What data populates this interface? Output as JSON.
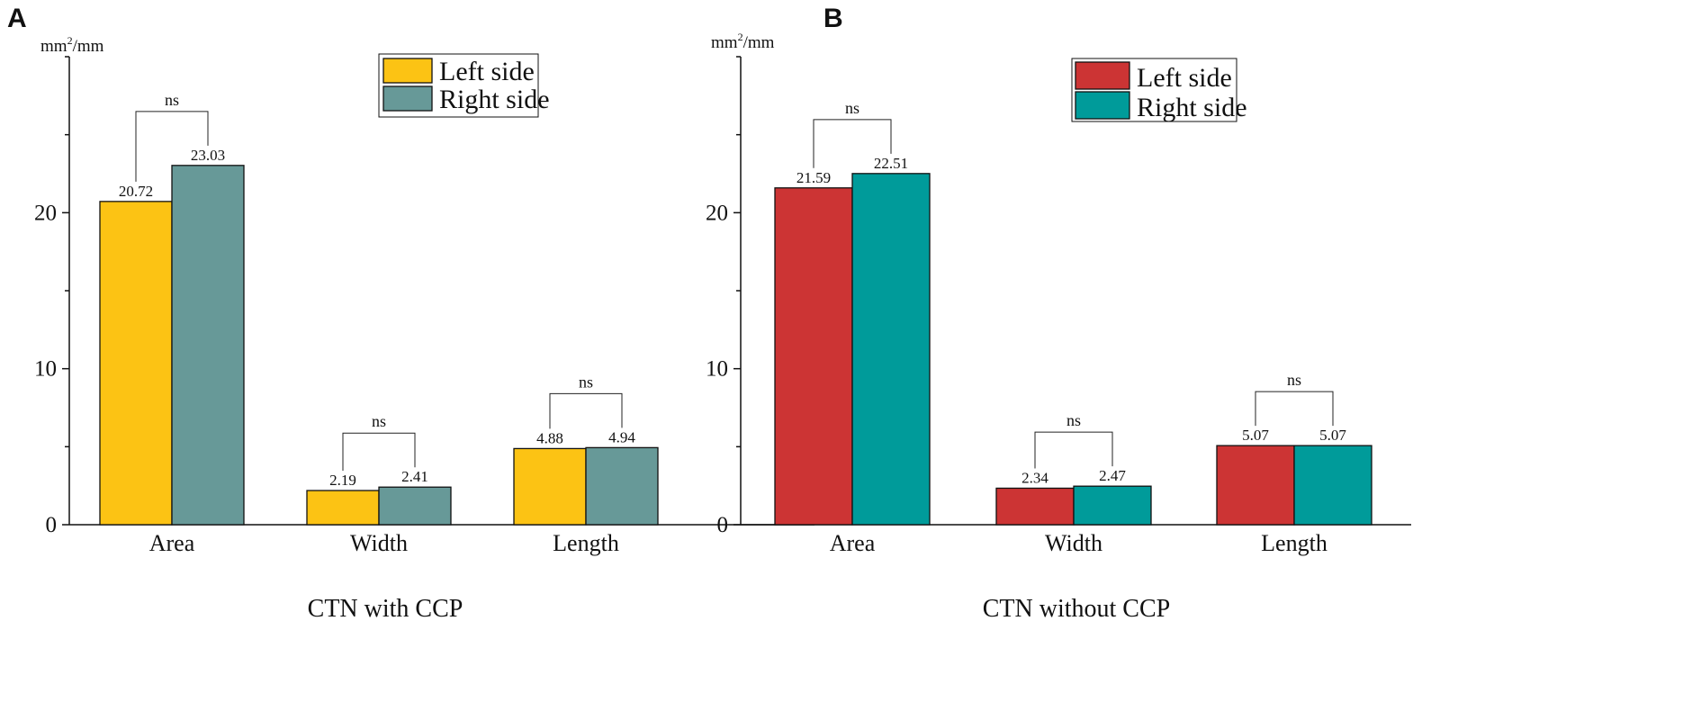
{
  "chart_data": [
    {
      "panel": "A",
      "type": "bar",
      "title": "",
      "xlabel": "CTN with CCP",
      "ylabel_base": "mm",
      "ylabel_sup": "2",
      "ylabel_rest": "/mm",
      "ylim": [
        0,
        30
      ],
      "yticks": [
        0,
        10,
        20
      ],
      "y_minor_step": 5,
      "categories": [
        "Area",
        "Width",
        "Length"
      ],
      "series": [
        {
          "name": "Left side",
          "color": "#FCC314",
          "values": [
            20.72,
            2.19,
            4.88
          ],
          "labels": [
            "20.72",
            "2.19",
            "4.88"
          ]
        },
        {
          "name": "Right side",
          "color": "#679998",
          "values": [
            23.03,
            2.41,
            4.94
          ],
          "labels": [
            "23.03",
            "2.41",
            "4.94"
          ]
        }
      ],
      "significance": [
        "ns",
        "ns",
        "ns"
      ],
      "legend_position": "top-right"
    },
    {
      "panel": "B",
      "type": "bar",
      "title": "",
      "xlabel": "CTN without CCP",
      "ylabel_base": "mm",
      "ylabel_sup": "2",
      "ylabel_rest": "/mm",
      "ylim": [
        0,
        30
      ],
      "yticks": [
        0,
        10,
        20
      ],
      "y_minor_step": 5,
      "categories": [
        "Area",
        "Width",
        "Length"
      ],
      "series": [
        {
          "name": "Left side",
          "color": "#CC3434",
          "values": [
            21.59,
            2.34,
            5.07
          ],
          "labels": [
            "21.59",
            "2.34",
            "5.07"
          ]
        },
        {
          "name": "Right side",
          "color": "#009B9A",
          "values": [
            22.51,
            2.47,
            5.07
          ],
          "labels": [
            "22.51",
            "2.47",
            "5.07"
          ]
        }
      ],
      "significance": [
        "ns",
        "ns",
        "ns"
      ],
      "legend_position": "top-right"
    }
  ]
}
